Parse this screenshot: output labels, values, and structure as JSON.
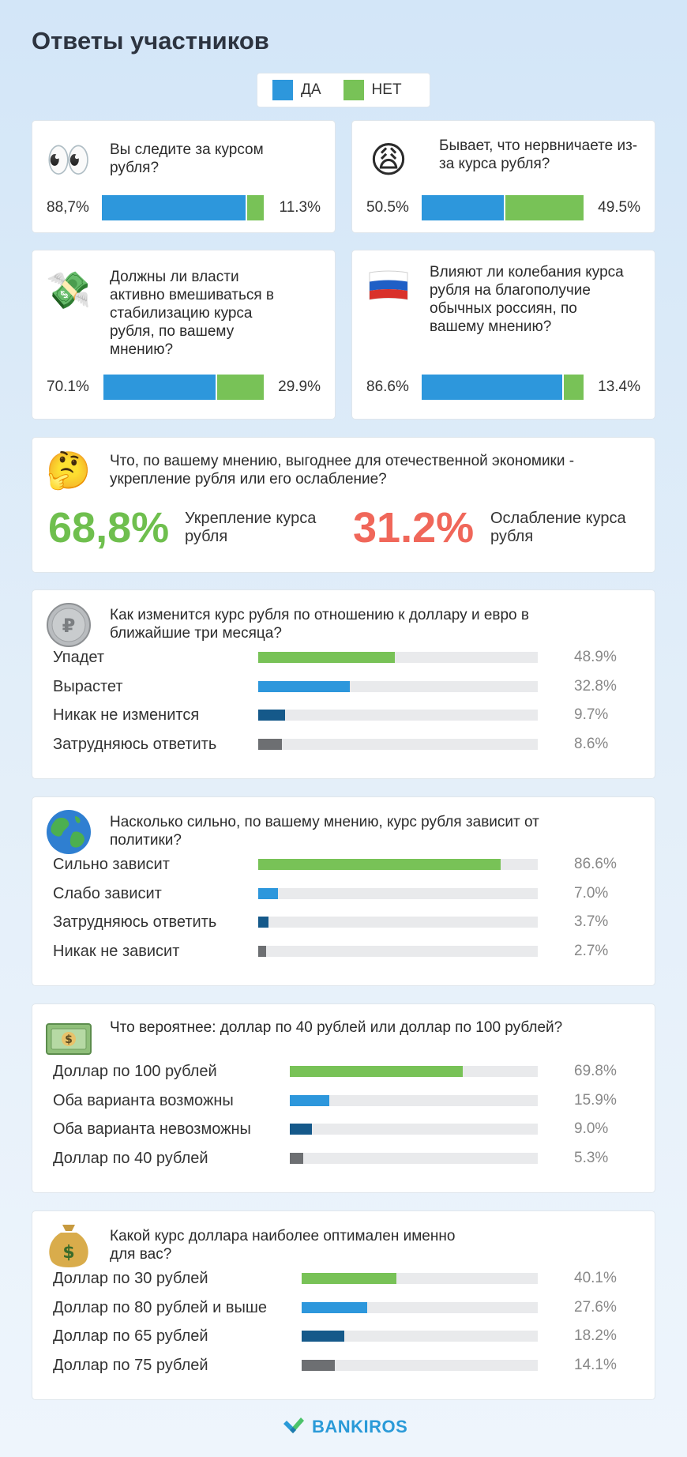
{
  "title": "Ответы участников",
  "legend": {
    "yes": "ДА",
    "no": "НЕТ",
    "yes_color": "#2d97dc",
    "no_color": "#78c257"
  },
  "yes_no": [
    {
      "icon": "eyes-icon",
      "emoji": "👀",
      "question": "Вы следите за курсом рубля?",
      "yes": "88,7%",
      "no": "11.3%",
      "yes_value": 88.7
    },
    {
      "icon": "weary-face-icon",
      "emoji": "😩",
      "question": "Бывает, что нервничаете из-за курса рубля?",
      "yes": "50.5%",
      "no": "49.5%",
      "yes_value": 50.5
    },
    {
      "icon": "money-with-wings-icon",
      "emoji": "💸",
      "question": "Должны ли власти активно вмешиваться в стабилизацию курса рубля, по вашему мнению?",
      "yes": "70.1%",
      "no": "29.9%",
      "yes_value": 70.1
    },
    {
      "icon": "russia-flag-icon",
      "emoji": "🇷🇺",
      "question": "Влияют ли колебания курса рубля на благополучие обычных россиян, по вашему мнению?",
      "yes": "86.6%",
      "no": "13.4%",
      "yes_value": 86.6
    }
  ],
  "strength": {
    "icon": "thinking-face-icon",
    "emoji": "🤔",
    "question": "Что, по вашему мнению, выгоднее для отечественной экономики - укрепление рубля или его ослабление?",
    "a_value": "68,8%",
    "a_label": "Укрепление курса рубля",
    "a_color": "#6fbf4e",
    "b_value": "31.2%",
    "b_label": "Ослабление курса рубля",
    "b_color": "#f0675a"
  },
  "colors": {
    "green": "#78c257",
    "blue": "#2d97dc",
    "dark": "#15598a",
    "gray": "#6d6f72",
    "track": "#e9eaec"
  },
  "chart_data": [
    {
      "type": "bar",
      "title": "Как изменится курс рубля по отношению к доллару и евро в ближайшие три месяца?",
      "icon": "ruble-coin-icon",
      "categories": [
        "Упадет",
        "Вырастет",
        "Никак не изменится",
        "Затрудняюсь ответить"
      ],
      "values": [
        48.9,
        32.8,
        9.7,
        8.6
      ],
      "labels": [
        "48.9%",
        "32.8%",
        "9.7%",
        "8.6%"
      ]
    },
    {
      "type": "bar",
      "title": "Насколько сильно, по вашему мнению, курс рубля зависит от политики?",
      "icon": "globe-icon",
      "categories": [
        "Сильно зависит",
        "Слабо зависит",
        "Затрудняюсь ответить",
        "Никак не зависит"
      ],
      "values": [
        86.6,
        7.0,
        3.7,
        2.7
      ],
      "labels": [
        "86.6%",
        "7.0%",
        "3.7%",
        "2.7%"
      ]
    },
    {
      "type": "bar",
      "title": "Что вероятнее: доллар по 40 рублей или доллар по 100 рублей?",
      "icon": "dollar-banknote-icon",
      "categories": [
        "Доллар по 100 рублей",
        "Оба варианта возможны",
        "Оба варианта невозможны",
        "Доллар по 40 рублей"
      ],
      "values": [
        69.8,
        15.9,
        9.0,
        5.3
      ],
      "labels": [
        "69.8%",
        "15.9%",
        "9.0%",
        "5.3%"
      ]
    },
    {
      "type": "bar",
      "title": "Какой курс доллара наиболее оптимален именно для вас?",
      "icon": "money-bag-icon",
      "categories": [
        "Доллар по 30 рублей",
        "Доллар по 80 рублей и выше",
        "Доллар по 65 рублей",
        "Доллар по 75 рублей"
      ],
      "values": [
        40.1,
        27.6,
        18.2,
        14.1
      ],
      "labels": [
        "40.1%",
        "27.6%",
        "18.2%",
        "14.1%"
      ]
    }
  ],
  "brand": "BANKIROS"
}
